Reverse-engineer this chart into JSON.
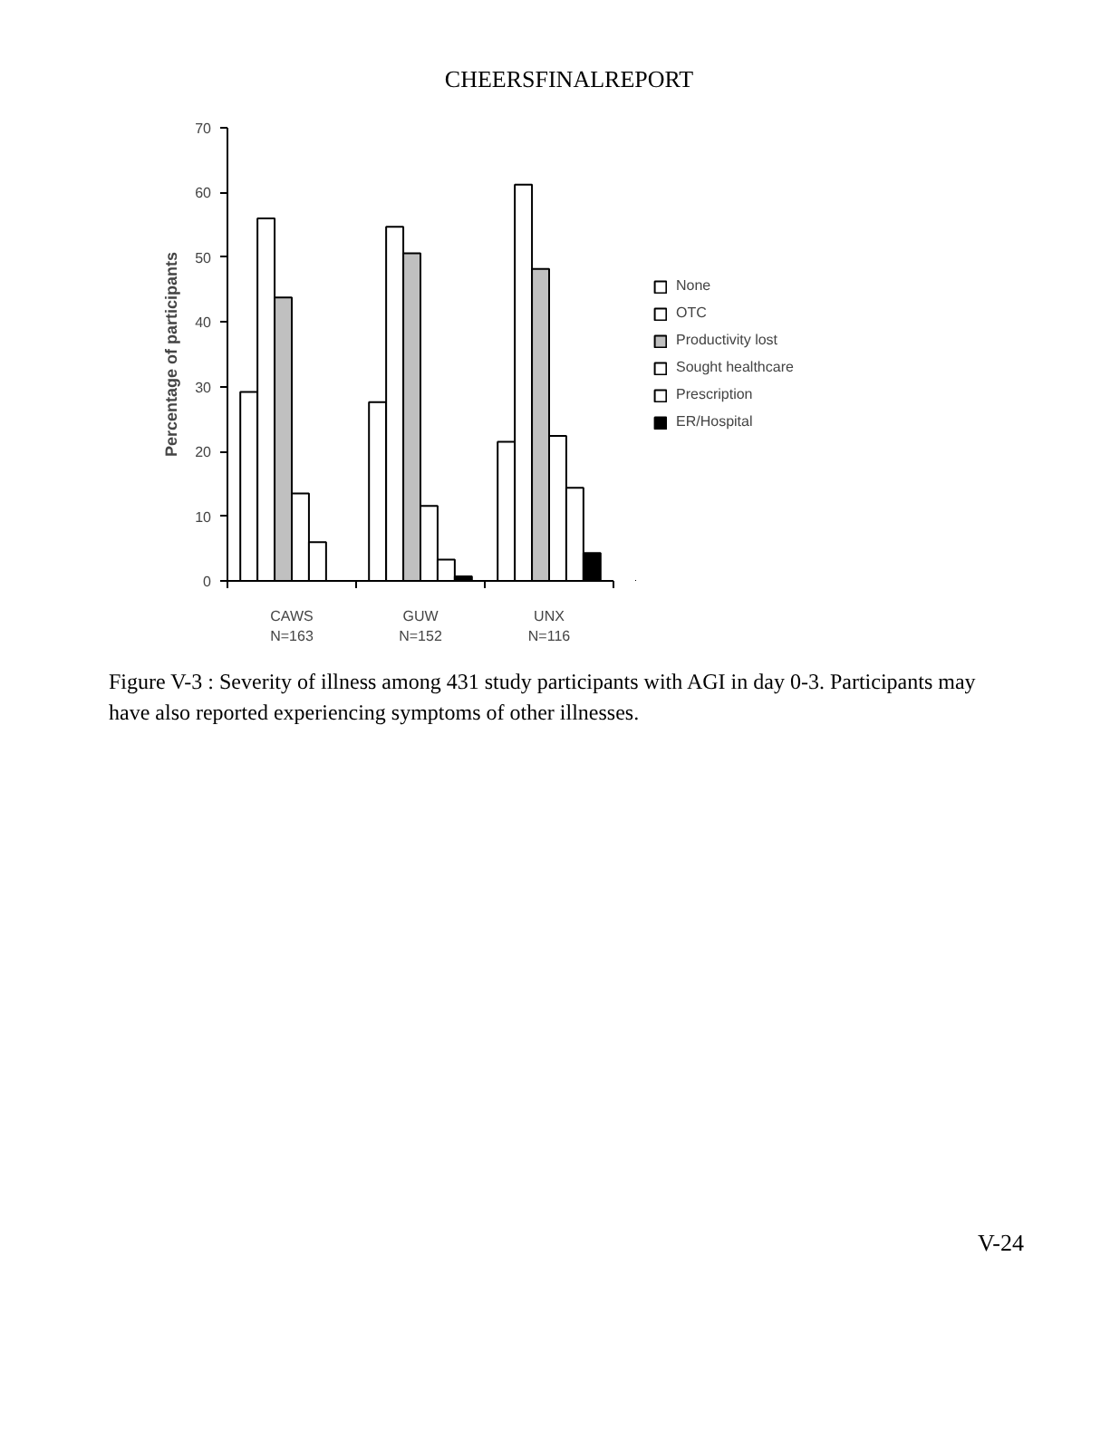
{
  "chart_data": {
    "type": "bar",
    "title": "CHEERSFINALREPORT",
    "ylabel": "Percentage of participants",
    "categories": [
      "CAWS\nN=163",
      "GUW\nN=152",
      "UNX\nN=116"
    ],
    "series": [
      {
        "name": "None",
        "color": "#ffffff",
        "values": [
          29.2,
          27.6,
          21.5
        ]
      },
      {
        "name": "OTC",
        "color": "#ffffff",
        "values": [
          56,
          54.7,
          61.2
        ]
      },
      {
        "name": "Productivity lost",
        "color": "#c0c0c0",
        "values": [
          43.8,
          50.6,
          48.2
        ]
      },
      {
        "name": "Sought healthcare",
        "color": "#ffffff",
        "values": [
          13.5,
          11.6,
          22.4
        ]
      },
      {
        "name": "Prescription",
        "color": "#ffffff",
        "values": [
          6,
          3.3,
          14.4
        ]
      },
      {
        "name": "ER/Hospital",
        "color": "#000000",
        "values": [
          0,
          0.7,
          4.3
        ]
      }
    ],
    "ylim": [
      0,
      70
    ],
    "yticks": [
      0,
      10,
      20,
      30,
      40,
      50,
      60,
      70
    ],
    "grid": false,
    "legend": "right",
    "annotations": [
      "Figure V-3 : Severity of illness among 431 study participants with AGI in day 0-3. Participants may have also reported experiencing symptoms of other illnesses.",
      "V-24"
    ]
  }
}
